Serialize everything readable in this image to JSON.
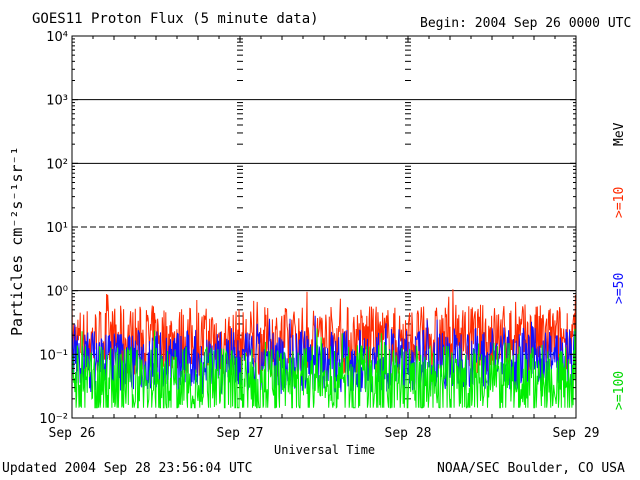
{
  "header": {
    "title": "GOES11 Proton Flux (5 minute data)",
    "begin": "Begin: 2004 Sep 26 0000 UTC"
  },
  "footer": {
    "updated": "Updated 2004 Sep 28 23:56:04 UTC",
    "credit": "NOAA/SEC Boulder, CO USA"
  },
  "chart_data": {
    "type": "line",
    "title": "GOES11 Proton Flux (5 minute data)",
    "xlabel": "Universal Time",
    "ylabel": "Particles cm⁻²s⁻¹sr⁻¹",
    "yscale": "log",
    "ylim": [
      0.01,
      10000
    ],
    "y_ticks": [
      {
        "value": 0.01,
        "label": "10⁻²"
      },
      {
        "value": 0.1,
        "label": "10⁻¹"
      },
      {
        "value": 1,
        "label": "10⁰"
      },
      {
        "value": 10,
        "label": "10¹"
      },
      {
        "value": 100,
        "label": "10²"
      },
      {
        "value": 1000,
        "label": "10³"
      },
      {
        "value": 10000,
        "label": "10⁴"
      }
    ],
    "xlim": [
      "2004-09-26",
      "2004-09-29"
    ],
    "x_ticks": [
      "Sep 26",
      "Sep 27",
      "Sep 28",
      "Sep 29"
    ],
    "unit_label": "MeV",
    "grid": true,
    "series": [
      {
        "name": ">=10",
        "color": "#ff2a00",
        "x": [
          "2004-09-26",
          "2004-09-26 12:00",
          "2004-09-27",
          "2004-09-27 12:00",
          "2004-09-28",
          "2004-09-28 12:00",
          "2004-09-29"
        ],
        "values": [
          0.16,
          0.17,
          0.15,
          0.17,
          0.16,
          0.18,
          0.17
        ]
      },
      {
        "name": ">=50",
        "color": "#1010ff",
        "x": [
          "2004-09-26",
          "2004-09-26 12:00",
          "2004-09-27",
          "2004-09-27 12:00",
          "2004-09-28",
          "2004-09-28 12:00",
          "2004-09-29"
        ],
        "values": [
          0.08,
          0.08,
          0.07,
          0.08,
          0.08,
          0.09,
          0.08
        ]
      },
      {
        "name": ">=100",
        "color": "#00ee00",
        "x": [
          "2004-09-26",
          "2004-09-26 12:00",
          "2004-09-27",
          "2004-09-27 12:00",
          "2004-09-28",
          "2004-09-28 12:00",
          "2004-09-29"
        ],
        "values": [
          0.035,
          0.035,
          0.03,
          0.035,
          0.035,
          0.04,
          0.035
        ]
      }
    ]
  }
}
